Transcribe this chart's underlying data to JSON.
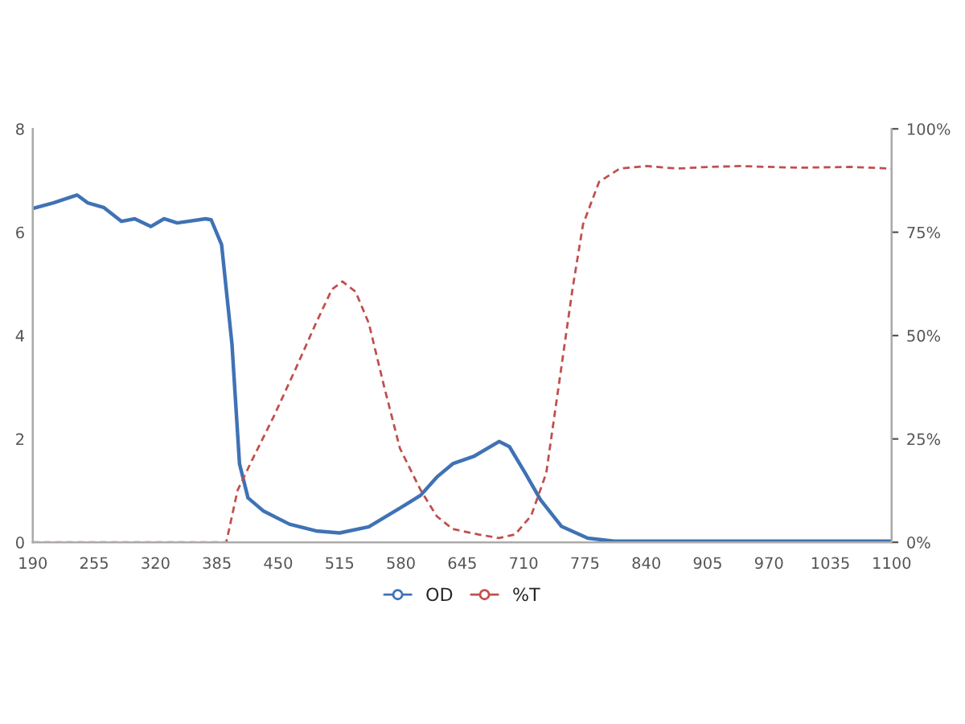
{
  "chart_data": {
    "type": "line",
    "legend": "bottom",
    "grid": false,
    "marker": "none",
    "xlim": [
      190,
      1100
    ],
    "xticks": [
      190,
      255,
      320,
      385,
      450,
      515,
      580,
      645,
      710,
      775,
      840,
      905,
      970,
      1035,
      1100
    ],
    "ylim": [
      0,
      8
    ],
    "yticks": [
      0,
      2,
      4,
      6,
      8
    ],
    "y2lim": [
      0,
      100
    ],
    "y2ticks": [
      {
        "value": 0,
        "label": "0%"
      },
      {
        "value": 25,
        "label": "25%"
      },
      {
        "value": 50,
        "label": "50%"
      },
      {
        "value": 75,
        "label": "75%"
      },
      {
        "value": 100,
        "label": "100%"
      }
    ],
    "series": [
      {
        "name": "OD",
        "color": "#3f72b5",
        "line_style": "solid",
        "x": [
          190,
          212,
          237,
          248,
          265,
          284,
          298,
          315,
          329,
          343,
          373,
          379,
          390,
          401,
          409,
          418,
          434,
          462,
          490,
          515,
          546,
          579,
          601,
          618,
          635,
          657,
          684,
          695,
          712,
          728,
          750,
          778,
          806,
          917,
          1100
        ],
        "values": [
          6.46,
          6.57,
          6.72,
          6.57,
          6.48,
          6.21,
          6.26,
          6.11,
          6.26,
          6.18,
          6.26,
          6.24,
          5.76,
          3.84,
          1.52,
          0.86,
          0.61,
          0.35,
          0.22,
          0.18,
          0.3,
          0.66,
          0.91,
          1.26,
          1.52,
          1.66,
          1.95,
          1.85,
          1.33,
          0.82,
          0.31,
          0.08,
          0.02,
          0.02,
          0.02
        ]
      },
      {
        "name": "%T",
        "color": "#c0504d",
        "line_style": "dashed",
        "axis": "y2",
        "x": [
          190,
          395,
          407,
          423,
          445,
          468,
          490,
          507,
          518,
          532,
          546,
          562,
          579,
          601,
          618,
          635,
          662,
          684,
          701,
          718,
          734,
          750,
          762,
          773,
          790,
          812,
          840,
          873,
          906,
          940,
          1001,
          1056,
          1100
        ],
        "values": [
          0,
          0,
          12.6,
          20.2,
          30.3,
          41.7,
          53.0,
          61.2,
          63.1,
          60.6,
          53.0,
          37.9,
          22.7,
          12.6,
          6.3,
          3.2,
          1.9,
          1.0,
          1.9,
          6.4,
          16.7,
          42.3,
          61.5,
          76.9,
          87.2,
          90.4,
          91.0,
          90.4,
          90.8,
          91.0,
          90.6,
          90.8,
          90.4
        ]
      }
    ]
  }
}
